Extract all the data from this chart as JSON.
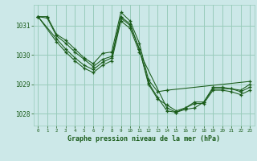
{
  "title": "Graphe pression niveau de la mer (hPa)",
  "bg_color": "#cce8e8",
  "grid_color": "#99ccbb",
  "line_color": "#1a5c1a",
  "xlim": [
    -0.5,
    23.5
  ],
  "ylim": [
    1027.6,
    1031.7
  ],
  "yticks": [
    1028,
    1029,
    1030,
    1031
  ],
  "xticks": [
    0,
    1,
    2,
    3,
    4,
    5,
    6,
    7,
    8,
    9,
    10,
    11,
    12,
    13,
    14,
    15,
    16,
    17,
    18,
    19,
    20,
    21,
    22,
    23
  ],
  "series": [
    {
      "x": [
        0,
        1,
        2,
        3,
        4,
        5,
        6,
        7,
        8,
        9,
        10,
        11,
        12,
        13,
        14,
        23
      ],
      "y": [
        1031.3,
        1031.3,
        1030.7,
        1030.5,
        1030.2,
        1029.9,
        1029.7,
        1030.05,
        1030.1,
        1031.45,
        1031.15,
        1030.4,
        1029.15,
        1028.75,
        1028.8,
        1029.1
      ]
    },
    {
      "x": [
        0,
        1,
        2,
        3,
        4,
        5,
        6,
        7,
        8,
        9,
        10,
        11,
        12,
        13,
        14,
        15,
        16,
        17,
        18,
        19,
        20,
        21,
        22,
        23
      ],
      "y": [
        1031.3,
        1031.25,
        1030.65,
        1030.4,
        1030.1,
        1029.85,
        1029.6,
        1029.85,
        1029.95,
        1031.3,
        1031.05,
        1030.2,
        1029.05,
        1028.55,
        1028.1,
        1028.05,
        1028.15,
        1028.2,
        1028.4,
        1028.85,
        1028.85,
        1028.85,
        1028.8,
        1029.0
      ]
    },
    {
      "x": [
        0,
        2,
        3,
        4,
        5,
        6,
        7,
        8,
        9,
        10,
        11,
        12,
        13,
        14,
        15,
        16,
        17,
        18,
        19,
        20,
        21,
        22,
        23
      ],
      "y": [
        1031.3,
        1030.55,
        1030.2,
        1029.9,
        1029.65,
        1029.5,
        1029.75,
        1029.9,
        1031.25,
        1031.0,
        1030.2,
        1029.0,
        1028.5,
        1028.3,
        1028.1,
        1028.2,
        1028.4,
        1028.4,
        1028.9,
        1028.9,
        1028.85,
        1028.75,
        1028.9
      ]
    },
    {
      "x": [
        0,
        2,
        3,
        4,
        5,
        6,
        7,
        8,
        9,
        10,
        11,
        14,
        15,
        16,
        17,
        18,
        19,
        20,
        21,
        22,
        23
      ],
      "y": [
        1031.3,
        1030.45,
        1030.1,
        1029.8,
        1029.55,
        1029.4,
        1029.65,
        1029.8,
        1031.15,
        1030.9,
        1030.1,
        1028.2,
        1028.05,
        1028.2,
        1028.35,
        1028.35,
        1028.8,
        1028.8,
        1028.75,
        1028.65,
        1028.8
      ]
    }
  ]
}
